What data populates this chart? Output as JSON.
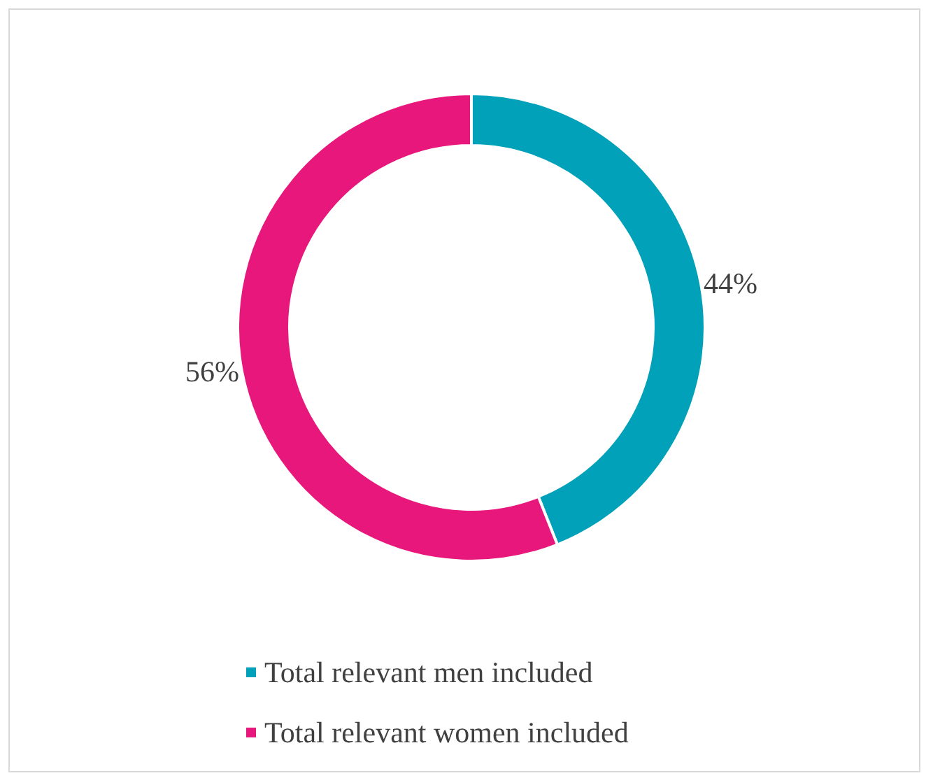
{
  "chart_data": {
    "type": "donut",
    "categories": [
      "Total relevant men included",
      "Total relevant women included"
    ],
    "values": [
      44,
      56
    ],
    "colors": [
      "#00a1b9",
      "#e8177b"
    ],
    "value_labels": [
      "44%",
      "56%"
    ],
    "legend": "bottom"
  }
}
